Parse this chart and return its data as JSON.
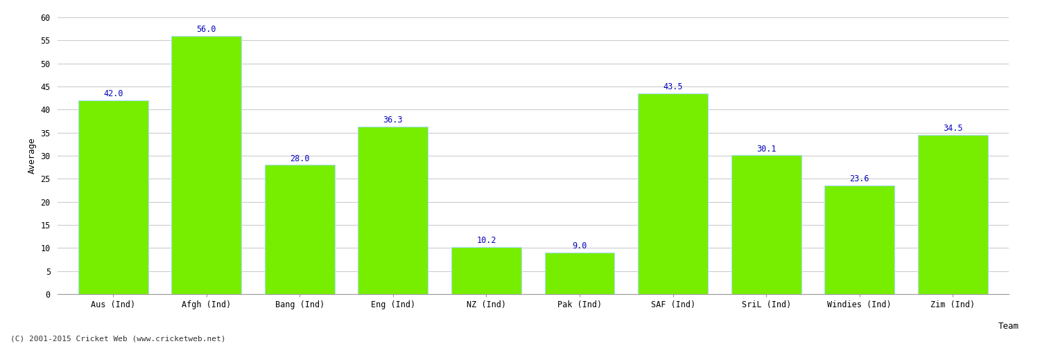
{
  "categories": [
    "Aus (Ind)",
    "Afgh (Ind)",
    "Bang (Ind)",
    "Eng (Ind)",
    "NZ (Ind)",
    "Pak (Ind)",
    "SAF (Ind)",
    "SriL (Ind)",
    "Windies (Ind)",
    "Zim (Ind)"
  ],
  "values": [
    42.0,
    56.0,
    28.0,
    36.3,
    10.2,
    9.0,
    43.5,
    30.1,
    23.6,
    34.5
  ],
  "bar_color": "#77ee00",
  "bar_edge_color": "#aaddff",
  "label_color": "#0000bb",
  "ylabel": "Average",
  "xlabel": "Team",
  "ylim": [
    0,
    60
  ],
  "yticks": [
    0,
    5,
    10,
    15,
    20,
    25,
    30,
    35,
    40,
    45,
    50,
    55,
    60
  ],
  "grid_color": "#cccccc",
  "background_color": "#ffffff",
  "label_fontsize": 8.5,
  "axis_label_fontsize": 9,
  "tick_fontsize": 8.5,
  "footnote": "(C) 2001-2015 Cricket Web (www.cricketweb.net)",
  "bar_width": 0.75
}
